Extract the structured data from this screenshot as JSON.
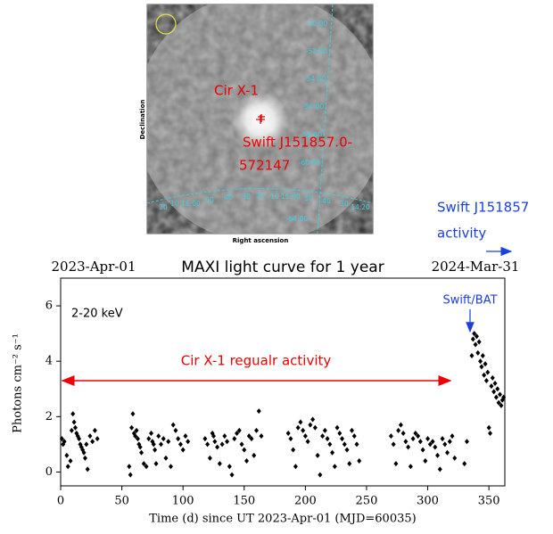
{
  "sky_image": {
    "xlabel": "Right ascension",
    "ylabel": "Declination",
    "dec_labels": [
      "-50:00",
      "-52:00",
      "-54:00",
      "-56:00",
      "-58:00",
      "-60:00",
      "-64:00"
    ],
    "ra_labels": [
      "20",
      "10 16:00",
      "50",
      "40",
      "30",
      "20",
      "10 15:00",
      "50",
      "40",
      "30",
      "14:20"
    ],
    "source_labels": [
      "Cir X-1",
      "Swift J151857.0-",
      "572147"
    ]
  },
  "chart_data": {
    "type": "scatter",
    "title": "MAXI light curve for 1 year",
    "xlabel": "Time (d) since UT 2023-Apr-01 (MJD=60035)",
    "ylabel": "Photons cm⁻² s⁻¹",
    "start_label": "2023-Apr-01",
    "end_label": "2024-Mar-31",
    "energy_label": "2-20 keV",
    "activity_label": "Cir X-1 regualr activity",
    "bat_label": "Swift/BAT",
    "swift_activity_label": [
      "Swift J151857",
      "activity"
    ],
    "color": "#000000",
    "xlim": [
      0,
      363
    ],
    "ylim": [
      -0.5,
      7
    ],
    "xticks": [
      0,
      50,
      100,
      150,
      200,
      250,
      300,
      350
    ],
    "yticks": [
      0,
      2,
      4,
      6
    ],
    "x": [
      1,
      2,
      3,
      5,
      6,
      8,
      9,
      10,
      11,
      12,
      13,
      14,
      15,
      16,
      17,
      18,
      19,
      20,
      21,
      22,
      24,
      26,
      28,
      30,
      56,
      57,
      58,
      59,
      60,
      61,
      62,
      63,
      64,
      65,
      66,
      68,
      70,
      72,
      74,
      75,
      76,
      77,
      78,
      80,
      82,
      84,
      86,
      88,
      90,
      92,
      94,
      96,
      98,
      100,
      102,
      104,
      118,
      120,
      122,
      124,
      125,
      126,
      128,
      130,
      132,
      134,
      136,
      138,
      140,
      142,
      144,
      146,
      148,
      150,
      152,
      154,
      156,
      158,
      160,
      162,
      164,
      186,
      188,
      190,
      192,
      194,
      196,
      198,
      200,
      202,
      204,
      206,
      208,
      210,
      212,
      214,
      216,
      218,
      220,
      222,
      224,
      226,
      228,
      230,
      232,
      234,
      236,
      238,
      240,
      242,
      244,
      270,
      272,
      274,
      276,
      278,
      280,
      282,
      284,
      286,
      288,
      290,
      292,
      294,
      296,
      298,
      300,
      302,
      304,
      306,
      308,
      310,
      312,
      314,
      316,
      318,
      320,
      322,
      330,
      332,
      336,
      337,
      338,
      339,
      340,
      341,
      342,
      343,
      344,
      345,
      346,
      347,
      348,
      349,
      350,
      351,
      352,
      353,
      354,
      355,
      356,
      357,
      358,
      359,
      360,
      361,
      362
    ],
    "values": [
      1.2,
      1.0,
      1.1,
      0.6,
      0.2,
      0.4,
      1.5,
      2.1,
      1.8,
      1.6,
      1.4,
      1.3,
      1.2,
      1.0,
      0.9,
      0.8,
      0.7,
      0.5,
      1.0,
      0.1,
      1.3,
      1.1,
      1.5,
      1.2,
      0.2,
      -0.1,
      1.6,
      2.1,
      1.4,
      1.3,
      1.5,
      1.2,
      1.0,
      0.9,
      0.7,
      0.3,
      0.2,
      1.2,
      1.4,
      1.1,
      1.0,
      0.8,
      0.3,
      1.3,
      1.0,
      1.2,
      0.5,
      1.1,
      0.2,
      1.7,
      1.5,
      1.2,
      1.0,
      0.8,
      1.3,
      1.1,
      1.2,
      1.0,
      0.5,
      1.4,
      1.3,
      1.1,
      0.9,
      0.3,
      1.0,
      1.3,
      1.1,
      0.2,
      -0.1,
      1.2,
      1.4,
      1.5,
      1.0,
      0.8,
      0.4,
      1.3,
      1.2,
      0.6,
      1.5,
      2.2,
      1.3,
      1.4,
      1.2,
      0.8,
      0.2,
      1.6,
      1.8,
      1.5,
      1.3,
      1.1,
      1.7,
      1.9,
      1.6,
      0.6,
      -0.1,
      1.3,
      1.5,
      1.2,
      1.0,
      0.7,
      0.2,
      1.6,
      1.4,
      1.2,
      1.0,
      0.8,
      0.3,
      1.5,
      1.3,
      1.0,
      0.4,
      1.3,
      1.0,
      0.3,
      1.5,
      1.7,
      1.4,
      1.1,
      0.9,
      0.2,
      1.2,
      1.4,
      1.3,
      1.1,
      0.8,
      0.4,
      1.2,
      1.0,
      1.1,
      0.9,
      0.6,
      0.1,
      1.2,
      1.0,
      0.7,
      1.1,
      1.3,
      0.5,
      0.3,
      1.1,
      4.2,
      4.8,
      5.0,
      4.6,
      4.9,
      4.3,
      4.7,
      4.0,
      3.8,
      4.2,
      3.5,
      3.9,
      3.3,
      3.6,
      1.6,
      1.4,
      3.1,
      3.4,
      2.9,
      3.2,
      2.7,
      3.0,
      2.5,
      2.8,
      2.4,
      2.6,
      2.7
    ]
  }
}
